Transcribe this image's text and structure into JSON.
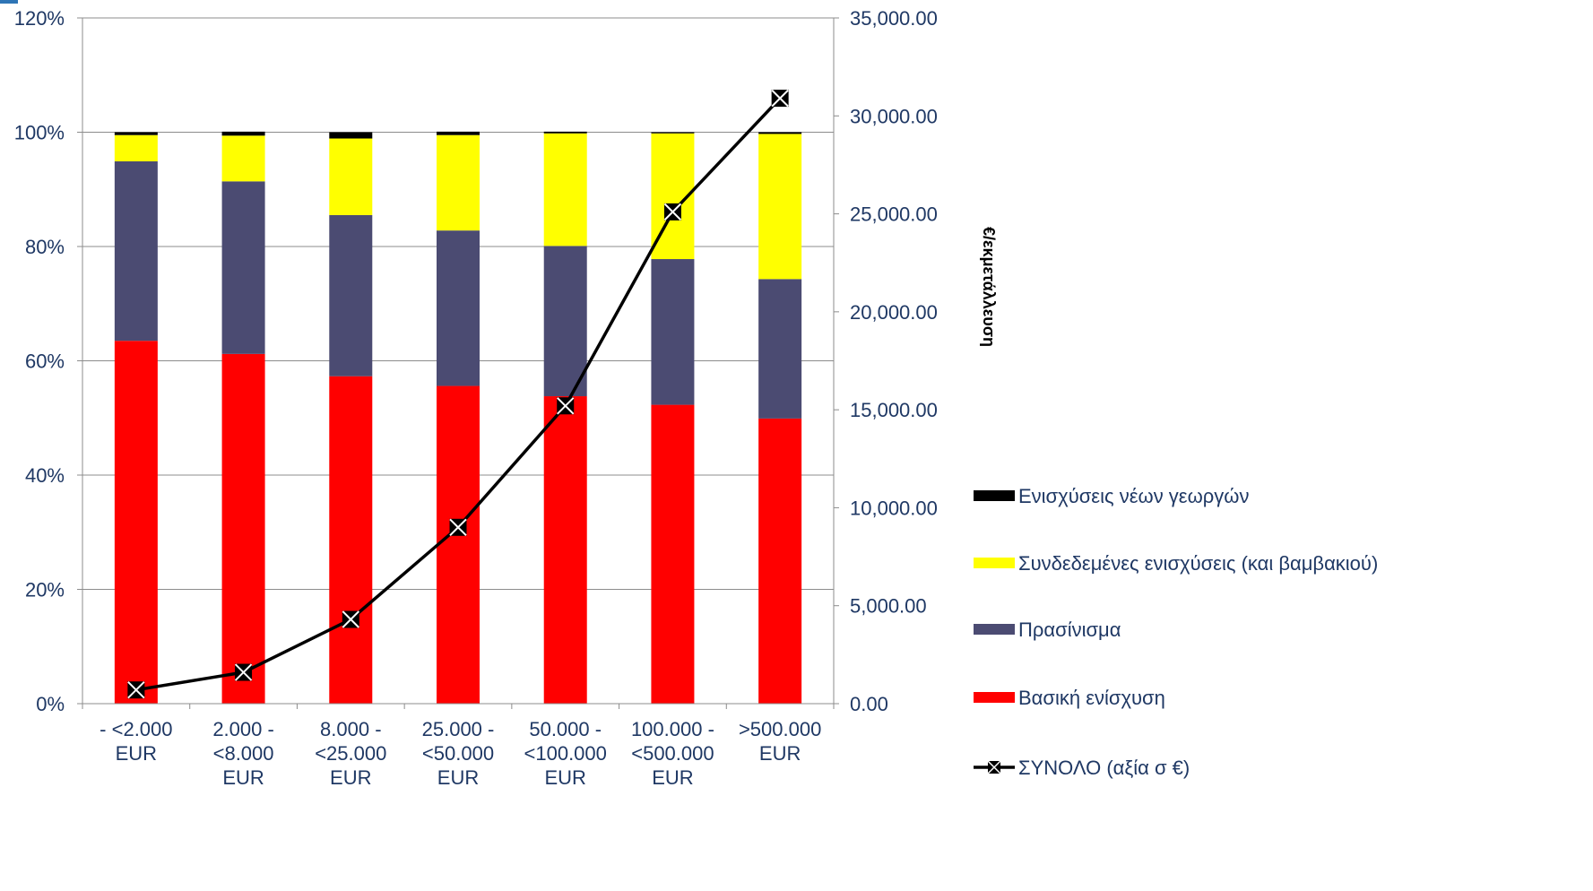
{
  "chart_data": {
    "type": "bar",
    "stacked": true,
    "categories": [
      [
        "- <2.000",
        "EUR"
      ],
      [
        "2.000 -",
        "<8.000",
        "EUR"
      ],
      [
        "8.000 -",
        "<25.000",
        "EUR"
      ],
      [
        "25.000 -",
        "<50.000",
        "EUR"
      ],
      [
        "50.000 -",
        "<100.000",
        "EUR"
      ],
      [
        "100.000 -",
        "<500.000",
        "EUR"
      ],
      [
        ">500.000",
        "EUR"
      ]
    ],
    "series": [
      {
        "name": "Βασική ενίσχυση",
        "color": "#ff0000",
        "axis": "left",
        "values": [
          63.5,
          61.2,
          57.3,
          55.6,
          53.8,
          52.3,
          49.9
        ]
      },
      {
        "name": "Πρασίνισμα",
        "color": "#4b4b72",
        "axis": "left",
        "values": [
          31.4,
          30.2,
          28.2,
          27.2,
          26.3,
          25.5,
          24.4
        ]
      },
      {
        "name": "Συνδεδεμένες ενισχύσεις (και βαμβακιού)",
        "color": "#ffff00",
        "axis": "left",
        "values": [
          4.6,
          8.0,
          13.4,
          16.7,
          19.7,
          22.0,
          25.4
        ]
      },
      {
        "name": "Ενισχύσεις νέων γεωργών",
        "color": "#000000",
        "axis": "left",
        "values": [
          0.5,
          0.7,
          1.1,
          0.6,
          0.3,
          0.2,
          0.3
        ]
      }
    ],
    "line_series": {
      "name": "ΣΥΝΟΛΟ (αξία σ €)",
      "color": "#000000",
      "axis": "right",
      "values": [
        700,
        1600,
        4300,
        9000,
        15200,
        25100,
        30900
      ]
    },
    "y_left": {
      "ylim": [
        0,
        120
      ],
      "ticks": [
        "0%",
        "20%",
        "40%",
        "60%",
        "80%",
        "100%",
        "120%"
      ],
      "tick_values": [
        0,
        20,
        40,
        60,
        80,
        100,
        120
      ]
    },
    "y_right": {
      "label": "€/εκμετάλλευση",
      "ylim": [
        0,
        35000
      ],
      "ticks": [
        "0.00",
        "5,000.00",
        "10,000.00",
        "15,000.00",
        "20,000.00",
        "25,000.00",
        "30,000.00",
        "35,000.00"
      ],
      "tick_values": [
        0,
        5000,
        10000,
        15000,
        20000,
        25000,
        30000,
        35000
      ]
    },
    "legend": {
      "placement": "right",
      "order": [
        {
          "label": "Ενισχύσεις νέων γεωργών",
          "color": "#000000",
          "kind": "bar"
        },
        {
          "label": "Συνδεδεμένες ενισχύσεις (και βαμβακιού)",
          "color": "#ffff00",
          "kind": "bar"
        },
        {
          "label": "Πρασίνισμα",
          "color": "#4b4b72",
          "kind": "bar"
        },
        {
          "label": "Βασική ενίσχυση",
          "color": "#ff0000",
          "kind": "bar"
        },
        {
          "label": "ΣΥΝΟΛΟ (αξία σ €)",
          "color": "#000000",
          "kind": "line"
        }
      ]
    },
    "grid": true
  }
}
